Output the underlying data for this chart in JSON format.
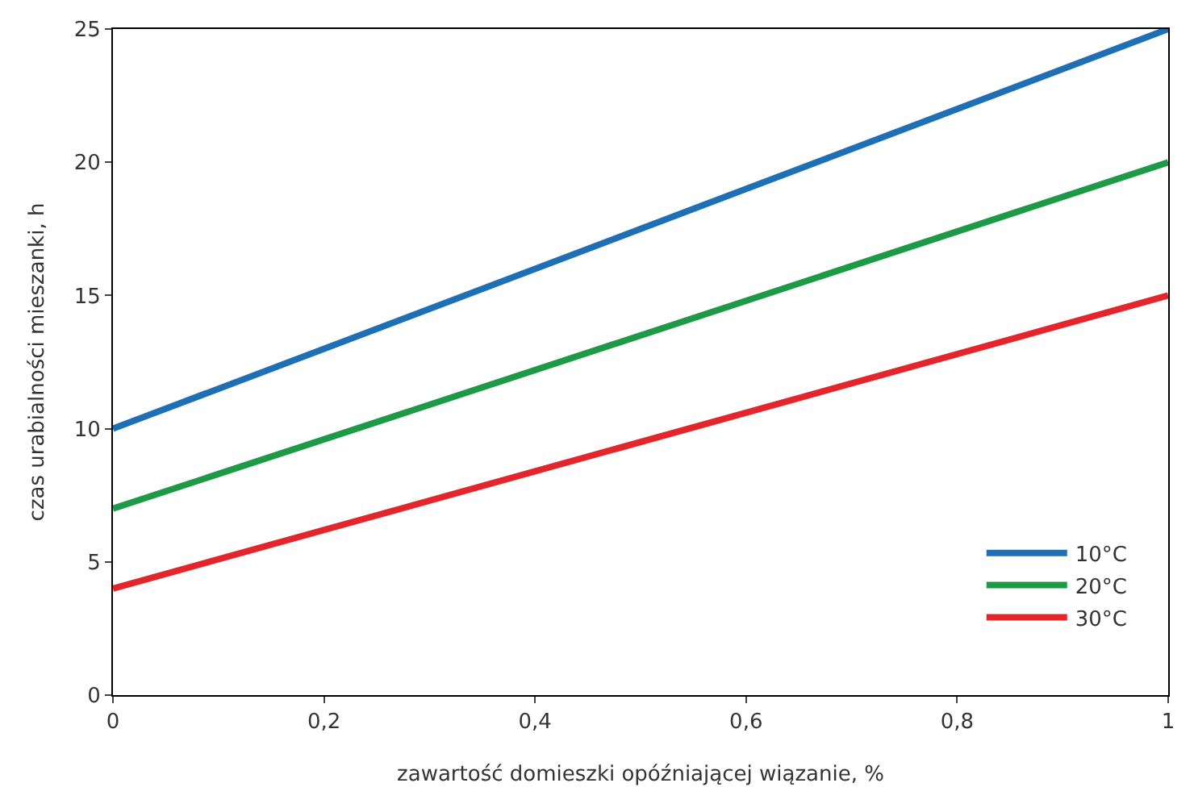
{
  "chart_data": {
    "type": "line",
    "xlabel": "zawartość domieszki opóźniającej wiązanie, %",
    "ylabel": "czas urabialności mieszanki, h",
    "x": [
      0,
      1
    ],
    "series": [
      {
        "name": "10°C",
        "color": "#1f6fb4",
        "values": [
          10,
          25
        ]
      },
      {
        "name": "20°C",
        "color": "#1e9a46",
        "values": [
          7,
          20
        ]
      },
      {
        "name": "30°C",
        "color": "#e3262b",
        "values": [
          4,
          15
        ]
      }
    ],
    "xlim": [
      0,
      1
    ],
    "ylim": [
      0,
      25
    ],
    "xticks": [
      {
        "value": 0,
        "label": "0"
      },
      {
        "value": 0.2,
        "label": "0,2"
      },
      {
        "value": 0.4,
        "label": "0,4"
      },
      {
        "value": 0.6,
        "label": "0,6"
      },
      {
        "value": 0.8,
        "label": "0,8"
      },
      {
        "value": 1,
        "label": "1"
      }
    ],
    "yticks": [
      0,
      5,
      10,
      15,
      20,
      25
    ],
    "legend": "bottom right",
    "marker": "none",
    "line_style": "solid"
  }
}
